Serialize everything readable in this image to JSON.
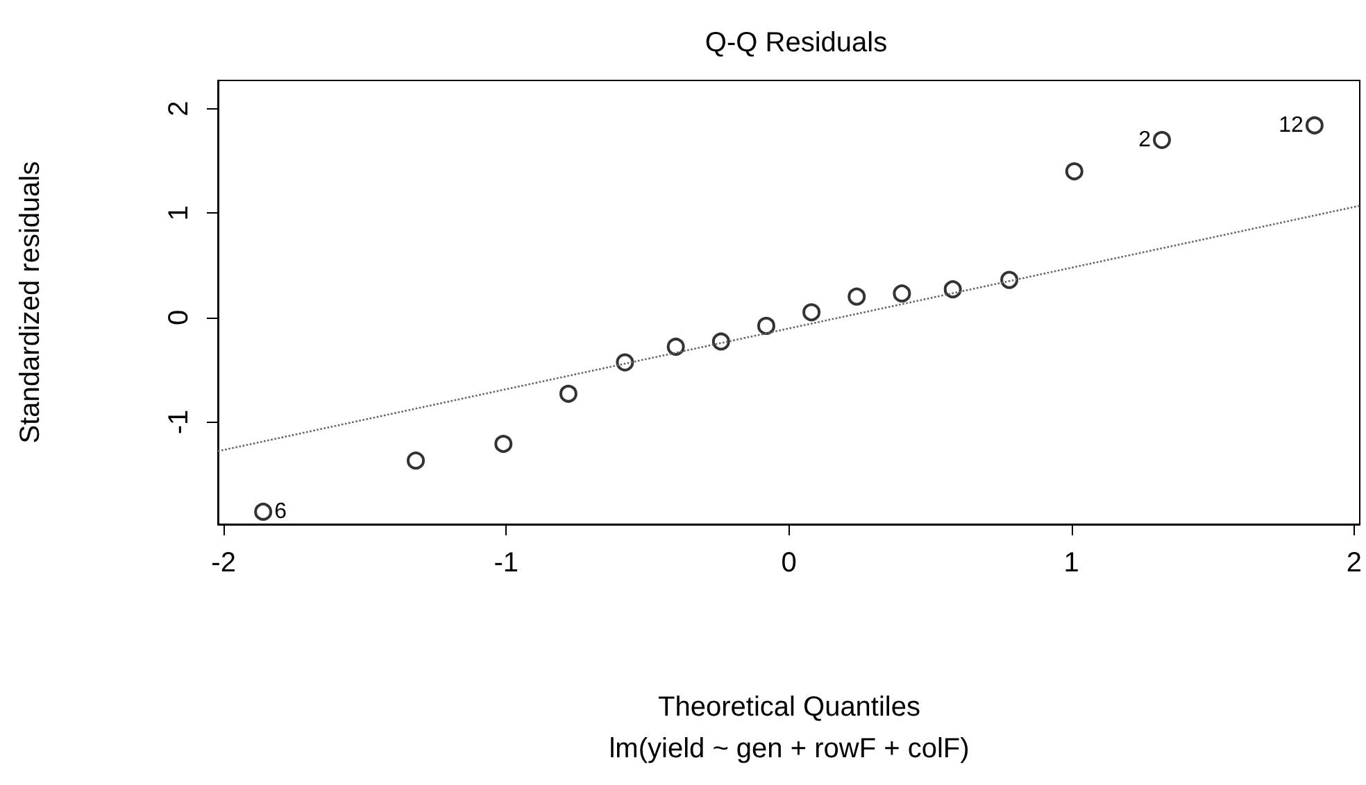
{
  "chart_data": {
    "type": "scatter",
    "title": "Q-Q Residuals",
    "xlabel": "Theoretical Quantiles",
    "subtitle": "lm(yield ~ gen + rowF + colF)",
    "ylabel": "Standardized residuals",
    "xlim": [
      -2.02,
      2.02
    ],
    "ylim": [
      -1.98,
      2.27
    ],
    "xticks": [
      -2,
      -1,
      0,
      1,
      2
    ],
    "yticks": [
      -1,
      0,
      1,
      2
    ],
    "grid": false,
    "marker": "circle",
    "series": [
      {
        "color": "#000000",
        "x": [
          -1.86,
          -1.32,
          -1.01,
          -0.78,
          -0.58,
          -0.4,
          -0.24,
          -0.08,
          0.08,
          0.24,
          0.4,
          0.58,
          0.78,
          1.01,
          1.32,
          1.86
        ],
        "values": [
          -1.86,
          -1.37,
          -1.21,
          -0.73,
          -0.43,
          -0.28,
          -0.23,
          -0.08,
          0.05,
          0.2,
          0.23,
          0.27,
          0.36,
          1.4,
          1.7,
          1.84
        ]
      },
      {
        "type": "line",
        "color": "#666666",
        "line_style": "dotted",
        "marker": "none",
        "x": [
          -2.02,
          2.02
        ],
        "values": [
          -1.28,
          1.07
        ]
      }
    ],
    "annotations": [
      {
        "text": "6",
        "x": -1.86,
        "y": -1.86
      },
      {
        "text": "2",
        "x": 1.32,
        "y": 1.7
      },
      {
        "text": "12",
        "x": 1.86,
        "y": 1.84
      }
    ]
  }
}
